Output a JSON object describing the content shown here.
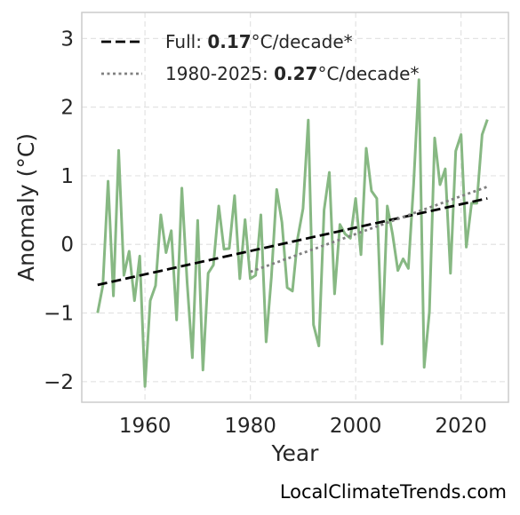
{
  "chart_data": {
    "type": "line",
    "xlabel": "Year",
    "ylabel": "Anomaly (°C)",
    "xlim": [
      1948,
      2029
    ],
    "ylim": [
      -2.3,
      3.38
    ],
    "x_ticks": [
      1960,
      1980,
      2000,
      2020
    ],
    "y_ticks": [
      -2,
      -1,
      0,
      1,
      2,
      3
    ],
    "y_tick_labels": [
      "−2",
      "−1",
      "0",
      "1",
      "2",
      "3"
    ],
    "grid": true,
    "legend_placement": "top-left",
    "series": [
      {
        "type": "line",
        "color": "#87b883",
        "x": [
          1951,
          1952,
          1953,
          1954,
          1955,
          1956,
          1957,
          1958,
          1959,
          1960,
          1961,
          1962,
          1963,
          1964,
          1965,
          1966,
          1967,
          1968,
          1969,
          1970,
          1971,
          1972,
          1973,
          1974,
          1975,
          1976,
          1977,
          1978,
          1979,
          1980,
          1981,
          1982,
          1983,
          1984,
          1985,
          1986,
          1987,
          1988,
          1989,
          1990,
          1991,
          1992,
          1993,
          1994,
          1995,
          1996,
          1997,
          1998,
          1999,
          2000,
          2001,
          2002,
          2003,
          2004,
          2005,
          2006,
          2007,
          2008,
          2009,
          2010,
          2011,
          2012,
          2013,
          2014,
          2015,
          2016,
          2017,
          2018,
          2019,
          2020,
          2021,
          2022,
          2023,
          2024,
          2025
        ],
        "values": [
          -1.0,
          -0.6,
          0.92,
          -0.75,
          1.37,
          -0.45,
          -0.1,
          -0.82,
          -0.17,
          -2.07,
          -0.82,
          -0.6,
          0.43,
          -0.12,
          0.2,
          -1.1,
          0.82,
          -0.55,
          -1.65,
          0.35,
          -1.83,
          -0.42,
          -0.3,
          0.56,
          -0.07,
          -0.06,
          0.71,
          -0.5,
          0.36,
          -0.5,
          -0.45,
          0.43,
          -1.42,
          -0.48,
          0.8,
          0.32,
          -0.63,
          -0.68,
          0.1,
          0.52,
          1.81,
          -1.17,
          -1.48,
          0.5,
          1.05,
          -0.72,
          0.29,
          0.15,
          0.09,
          0.67,
          -0.15,
          1.4,
          0.78,
          0.67,
          -1.45,
          0.56,
          0.15,
          -0.38,
          -0.21,
          -0.35,
          0.87,
          2.4,
          -1.79,
          -0.98,
          1.55,
          0.87,
          1.1,
          -0.42,
          1.36,
          1.6,
          -0.04,
          0.6,
          0.6,
          1.6,
          1.82
        ]
      },
      {
        "type": "trend",
        "name": "Full",
        "color": "#000000",
        "dash": "dashed",
        "x": [
          1951,
          2025
        ],
        "values": [
          -0.59,
          0.67
        ],
        "rate_value": "0.17",
        "rate_unit": "°C/decade*"
      },
      {
        "type": "trend",
        "name": "1980-2025",
        "color": "#808080",
        "dash": "dotted",
        "x": [
          1980,
          2025
        ],
        "values": [
          -0.4,
          0.84
        ],
        "rate_value": "0.27",
        "rate_unit": "°C/decade*"
      }
    ]
  },
  "footer": {
    "text": "LocalClimateTrends.com"
  }
}
